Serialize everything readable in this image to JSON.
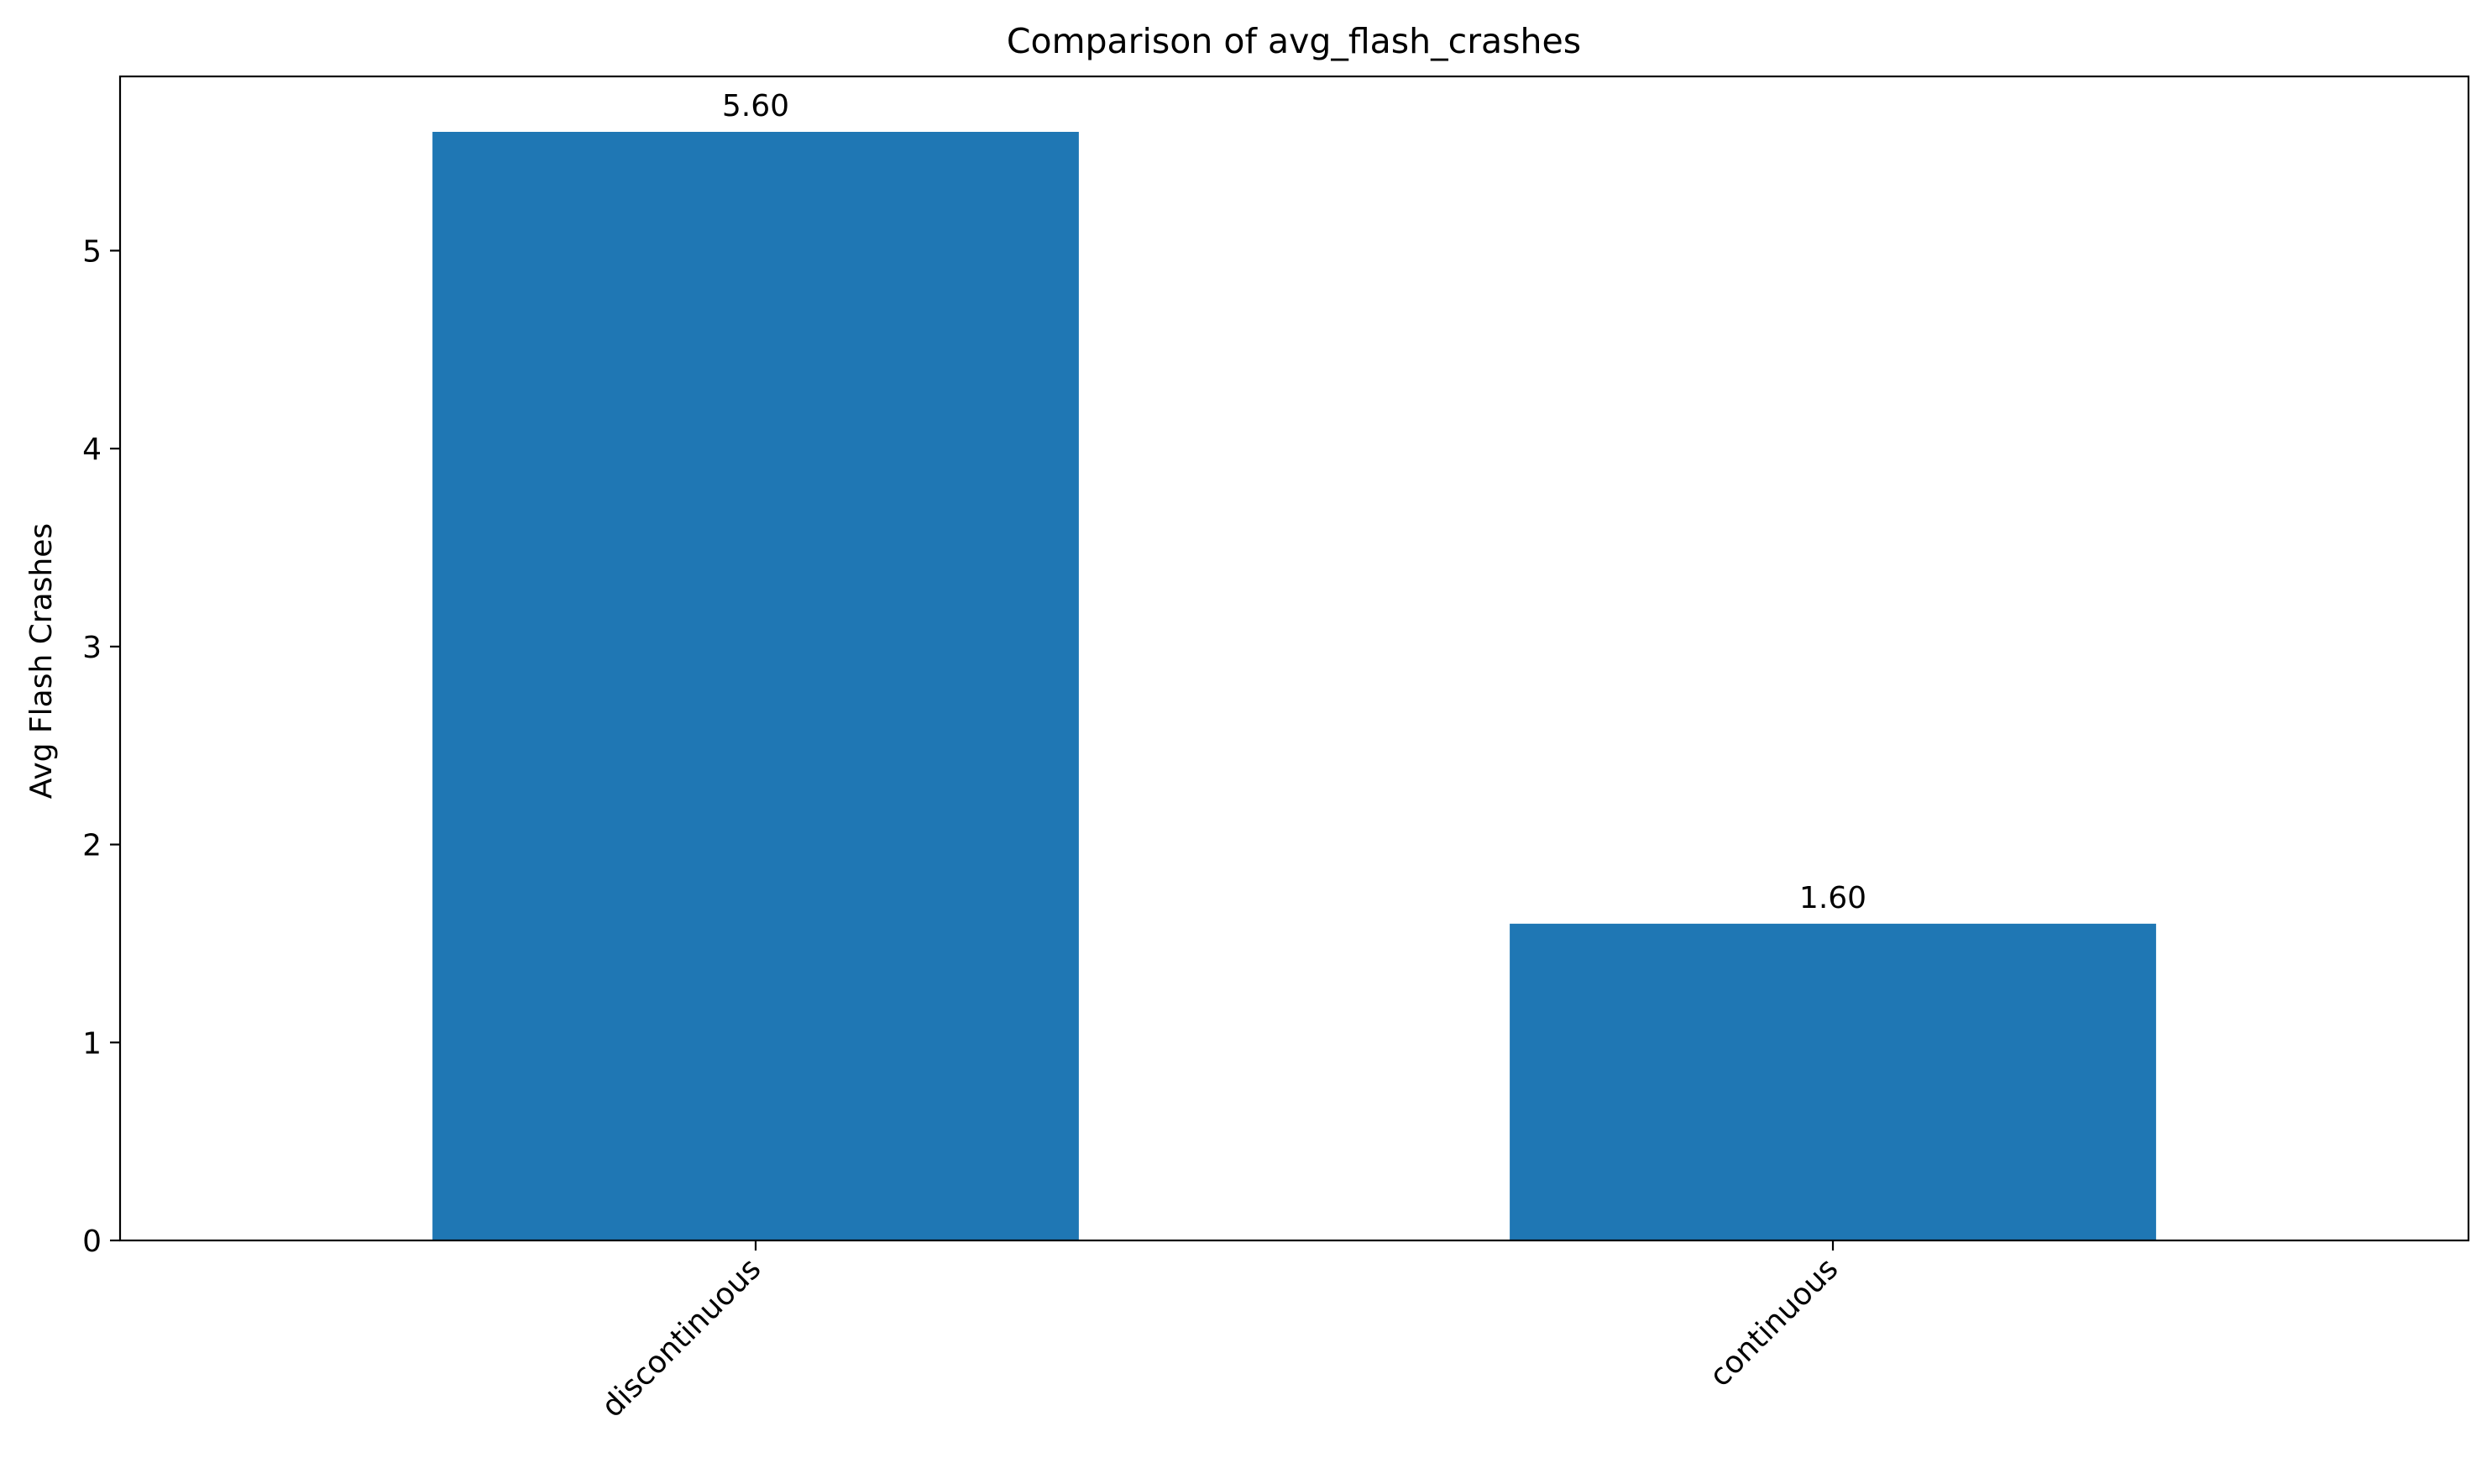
{
  "chart_data": {
    "type": "bar",
    "title": "Comparison of avg_flash_crashes",
    "xlabel": "",
    "ylabel": "Avg Flash Crashes",
    "categories": [
      "discontinuous",
      "continuous"
    ],
    "values": [
      5.6,
      1.6
    ],
    "value_labels": [
      "5.60",
      "1.60"
    ],
    "ylim": [
      0,
      5.88
    ],
    "yticks": [
      0,
      1,
      2,
      3,
      4,
      5
    ],
    "ytick_labels": [
      "0",
      "1",
      "2",
      "3",
      "4",
      "5"
    ],
    "bar_color": "#1f77b4",
    "grid": false,
    "legend": "none"
  }
}
